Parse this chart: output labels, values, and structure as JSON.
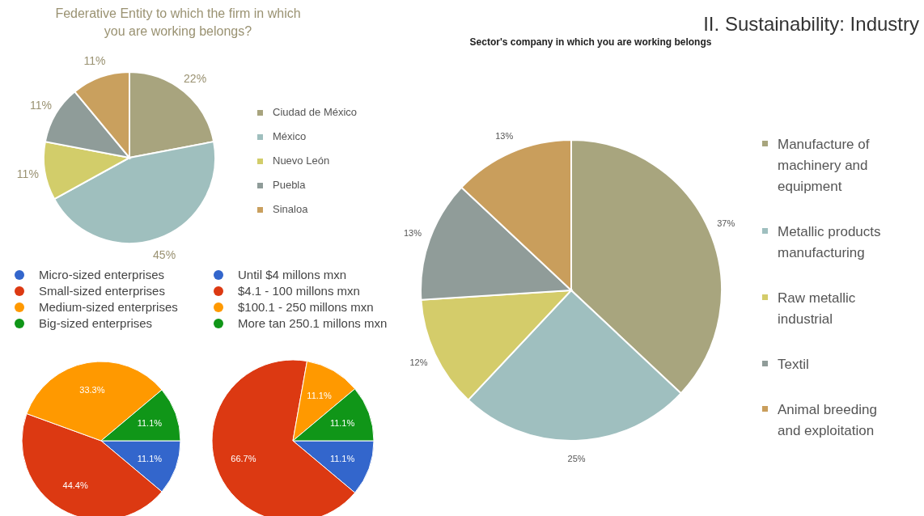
{
  "chart_data": [
    {
      "type": "pie",
      "title": "Federative Entity to which the firm in which you are working belongs?",
      "categories": [
        "Ciudad de México",
        "México",
        "Nuevo León",
        "Puebla",
        "Sinaloa"
      ],
      "values": [
        22,
        45,
        11,
        11,
        11
      ],
      "value_labels": [
        "22%",
        "45%",
        "11%",
        "11%",
        "11%"
      ],
      "colors": [
        "#a8a47e",
        "#9fbfbe",
        "#d2cd6a",
        "#8f9c99",
        "#c9a05e"
      ],
      "legend": "right"
    },
    {
      "type": "pie",
      "categories": [
        "Micro-sized enterprises",
        "Small-sized enterprises",
        "Medium-sized enterprises",
        "Big-sized enterprises"
      ],
      "values": [
        11.1,
        44.4,
        33.3,
        11.1
      ],
      "value_labels": [
        "11.1%",
        "44.4%",
        "33.3%",
        "11.1%"
      ],
      "colors": [
        "#3366cc",
        "#dc3912",
        "#ff9900",
        "#109618"
      ],
      "legend": "top"
    },
    {
      "type": "pie",
      "categories": [
        "Until $4 millons mxn",
        "$4.1 - 100 millons mxn",
        "$100.1 - 250 millons mxn",
        "More tan 250.1 millons mxn"
      ],
      "values": [
        11.1,
        66.7,
        11.1,
        11.1
      ],
      "value_labels": [
        "11.1%",
        "66.7%",
        "11.1%",
        "11.1%"
      ],
      "colors": [
        "#3366cc",
        "#dc3912",
        "#ff9900",
        "#109618"
      ],
      "legend": "top"
    },
    {
      "type": "pie",
      "title": "II. Sustainability: Industry",
      "subtitle": "Sector's company in which you are working belongs",
      "categories": [
        "Manufacture of machinery and equipment",
        "Metallic products manufacturing",
        "Raw metallic industrial",
        "Textil",
        "Animal breeding and exploitation"
      ],
      "values": [
        37,
        25,
        12,
        13,
        13
      ],
      "value_labels": [
        "37%",
        "25%",
        "12%",
        "13%",
        "13%"
      ],
      "colors": [
        "#a8a57e",
        "#9fbfbf",
        "#d4cc6a",
        "#909c99",
        "#c99e5c"
      ],
      "legend": "right"
    }
  ]
}
